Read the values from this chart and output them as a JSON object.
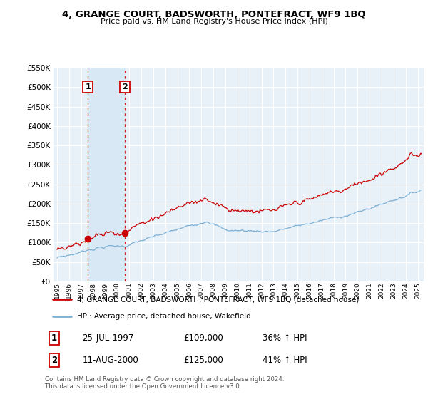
{
  "title": "4, GRANGE COURT, BADSWORTH, PONTEFRACT, WF9 1BQ",
  "subtitle": "Price paid vs. HM Land Registry's House Price Index (HPI)",
  "legend_line1": "4, GRANGE COURT, BADSWORTH, PONTEFRACT, WF9 1BQ (detached house)",
  "legend_line2": "HPI: Average price, detached house, Wakefield",
  "footer": "Contains HM Land Registry data © Crown copyright and database right 2024.\nThis data is licensed under the Open Government Licence v3.0.",
  "sales": [
    {
      "num": 1,
      "date": "25-JUL-1997",
      "price": 109000,
      "pct": "36%",
      "dir": "↑",
      "year": 1997.57
    },
    {
      "num": 2,
      "date": "11-AUG-2000",
      "price": 125000,
      "pct": "41%",
      "dir": "↑",
      "year": 2000.62
    }
  ],
  "red_color": "#cc0000",
  "blue_color": "#7bafd4",
  "shade_color": "#d8e8f5",
  "bg_color": "#e8f0f8",
  "sale_box_color": "#cc0000",
  "ylim_max": 550000,
  "ylim_step": 50000,
  "xlim_start": 1994.7,
  "xlim_end": 2025.5,
  "sale1_factor": 1.36,
  "sale2_factor": 1.41
}
